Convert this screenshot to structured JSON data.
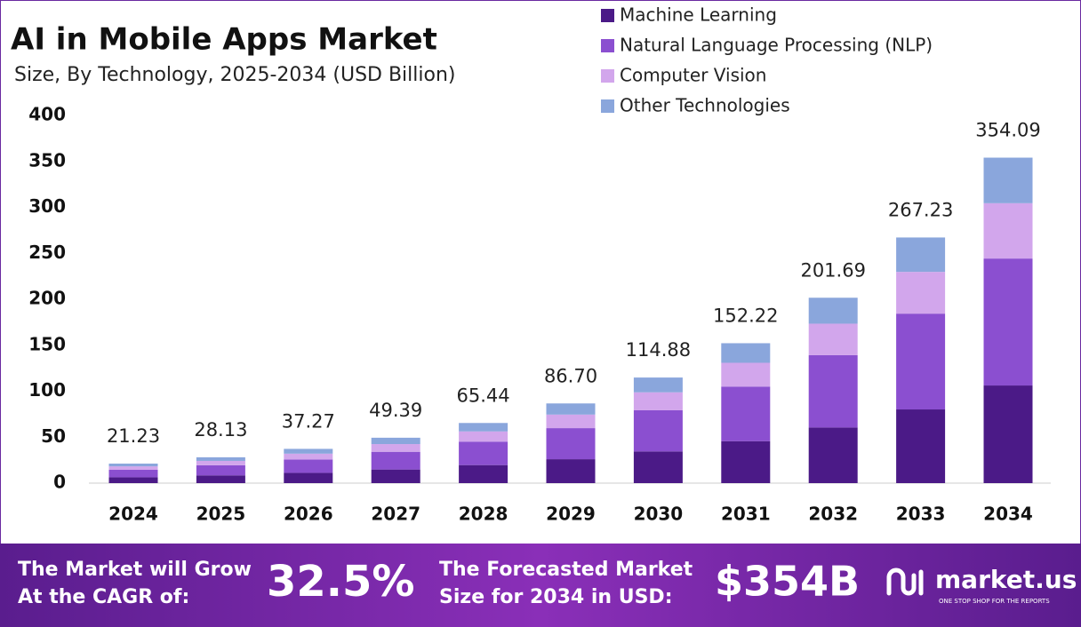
{
  "chart_data": {
    "type": "stacked_bar",
    "title": "AI in Mobile Apps Market",
    "subtitle": "Size, By Technology, 2025-2034 (USD Billion)",
    "categories": [
      "2024",
      "2025",
      "2026",
      "2027",
      "2028",
      "2029",
      "2030",
      "2031",
      "2032",
      "2033",
      "2034"
    ],
    "series": [
      {
        "name": "Machine Learning",
        "color": "#4b1a87",
        "values": [
          6.37,
          8.44,
          11.18,
          14.82,
          19.63,
          26.01,
          34.46,
          45.67,
          60.51,
          80.17,
          106.23
        ]
      },
      {
        "name": "Natural Language Processing (NLP)",
        "color": "#8b4fd0",
        "values": [
          8.28,
          10.97,
          14.54,
          19.26,
          25.52,
          33.81,
          44.8,
          59.37,
          78.66,
          104.22,
          138.1
        ]
      },
      {
        "name": "Computer Vision",
        "color": "#d2a6ec",
        "values": [
          3.61,
          4.78,
          6.34,
          8.4,
          11.12,
          14.74,
          19.53,
          25.88,
          34.29,
          45.43,
          60.2
        ]
      },
      {
        "name": "Other Technologies",
        "color": "#8aa6dc",
        "values": [
          2.97,
          3.94,
          5.21,
          6.91,
          9.17,
          12.14,
          16.09,
          21.3,
          28.23,
          37.41,
          49.56
        ]
      }
    ],
    "totals": {
      "values": [
        21.23,
        28.13,
        37.27,
        49.39,
        65.44,
        86.7,
        114.88,
        152.22,
        201.69,
        267.23,
        354.09
      ],
      "value_labels": [
        "21.23",
        "28.13",
        "37.27",
        "49.39",
        "65.44",
        "86.70",
        "114.88",
        "152.22",
        "201.69",
        "267.23",
        "354.09"
      ]
    },
    "ylim": [
      0,
      400
    ],
    "yticks": [
      0,
      50,
      100,
      150,
      200,
      250,
      300,
      350,
      400
    ],
    "grid": false,
    "legend": "top-right"
  },
  "footer": {
    "cagr_text_1": "The Market will Grow",
    "cagr_text_2": "At the CAGR of:",
    "cagr_value": "32.5%",
    "forecast_text_1": "The Forecasted Market",
    "forecast_text_2": "Size for 2034 in USD:",
    "forecast_value": "$354B",
    "brand": "market.us",
    "brand_tagline": "ONE STOP SHOP FOR THE REPORTS"
  }
}
